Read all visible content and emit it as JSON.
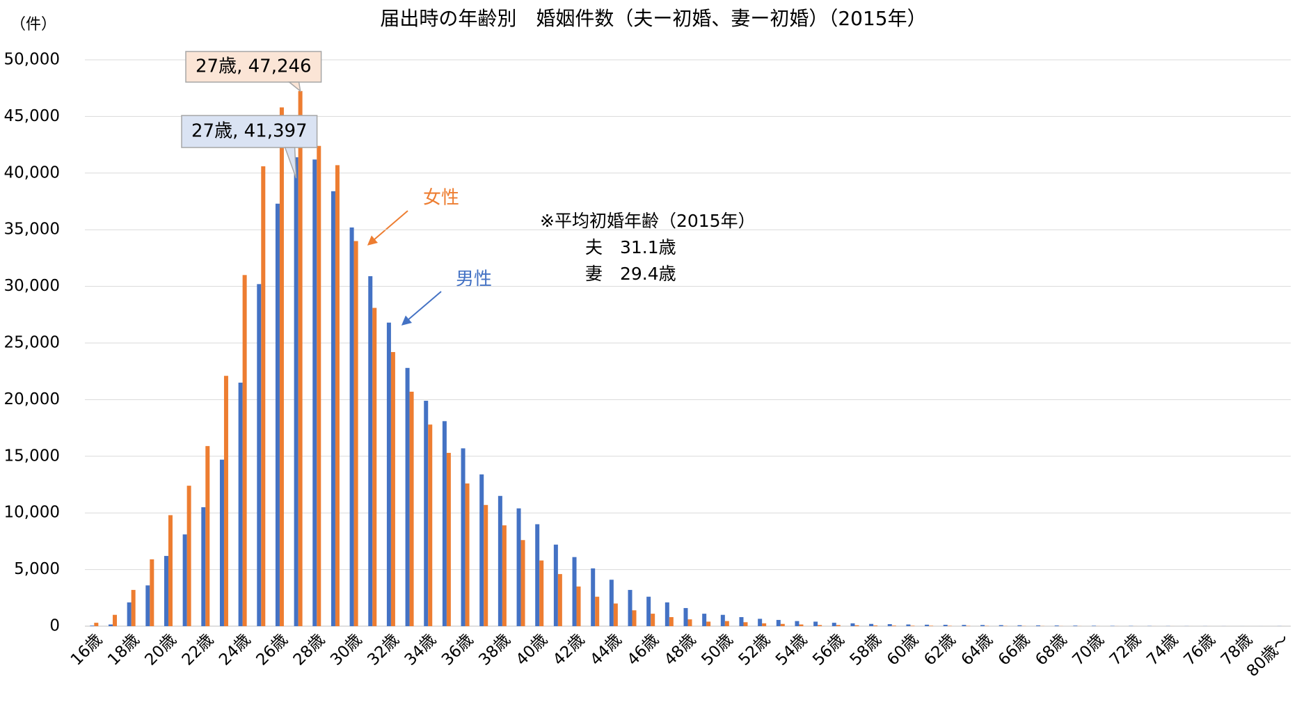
{
  "chart_data": {
    "type": "bar",
    "title": "届出時の年齢別　婚姻件数（夫ー初婚、妻ー初婚）（2015年）",
    "y_unit": "（件）",
    "categories": [
      "16歳",
      null,
      "18歳",
      null,
      "20歳",
      null,
      "22歳",
      null,
      "24歳",
      null,
      "26歳",
      null,
      "28歳",
      null,
      "30歳",
      null,
      "32歳",
      null,
      "34歳",
      null,
      "36歳",
      null,
      "38歳",
      null,
      "40歳",
      null,
      "42歳",
      null,
      "44歳",
      null,
      "46歳",
      null,
      "48歳",
      null,
      "50歳",
      null,
      "52歳",
      null,
      "54歳",
      null,
      "56歳",
      null,
      "58歳",
      null,
      "60歳",
      null,
      "62歳",
      null,
      "64歳",
      null,
      "66歳",
      null,
      "68歳",
      null,
      "70歳",
      null,
      "72歳",
      null,
      "74歳",
      null,
      "76歳",
      null,
      "78歳",
      null,
      "80歳～"
    ],
    "series": [
      {
        "name": "男性",
        "color": "#4472c4",
        "values": [
          50,
          150,
          2100,
          3600,
          6200,
          8100,
          10500,
          14700,
          21500,
          30200,
          37300,
          41397,
          41200,
          38400,
          35200,
          30900,
          26800,
          22800,
          19900,
          18100,
          15700,
          13400,
          11500,
          10400,
          9000,
          7200,
          6100,
          5100,
          4100,
          3200,
          2600,
          2100,
          1600,
          1100,
          1000,
          800,
          650,
          550,
          450,
          400,
          300,
          250,
          200,
          180,
          150,
          130,
          120,
          110,
          100,
          90,
          80,
          70,
          60,
          50,
          40,
          30,
          25,
          20,
          15,
          10,
          8,
          5,
          3,
          2,
          10
        ],
        "value_labels": [
          null,
          null,
          null,
          null,
          null,
          null,
          null,
          null,
          null,
          null,
          null,
          "27歳, 41,397",
          null,
          null,
          null,
          null,
          null,
          null,
          null,
          null,
          null,
          null,
          null,
          null,
          null,
          null,
          null,
          null,
          null,
          null,
          null,
          null,
          null,
          null,
          null,
          null,
          null,
          null,
          null,
          null,
          null,
          null,
          null,
          null,
          null,
          null,
          null,
          null,
          null,
          null,
          null,
          null,
          null,
          null,
          null,
          null,
          null,
          null,
          null,
          null,
          null,
          null,
          null,
          null,
          null
        ]
      },
      {
        "name": "女性",
        "color": "#ed7d31",
        "values": [
          300,
          1000,
          3200,
          5900,
          9800,
          12400,
          15900,
          22100,
          31000,
          40600,
          45800,
          47246,
          42400,
          40700,
          34000,
          28100,
          24200,
          20700,
          17800,
          15300,
          12600,
          10700,
          8900,
          7600,
          5800,
          4600,
          3500,
          2600,
          2000,
          1400,
          1100,
          800,
          600,
          400,
          450,
          350,
          250,
          200,
          150,
          100,
          100,
          80,
          60,
          50,
          40,
          40,
          35,
          30,
          25,
          20,
          18,
          15,
          12,
          10,
          8,
          6,
          5,
          4,
          3,
          2,
          2,
          1,
          1,
          1,
          2
        ],
        "value_labels": [
          null,
          null,
          null,
          null,
          null,
          null,
          null,
          null,
          null,
          null,
          null,
          "27歳, 47,246",
          null,
          null,
          null,
          null,
          null,
          null,
          null,
          null,
          null,
          null,
          null,
          null,
          null,
          null,
          null,
          null,
          null,
          null,
          null,
          null,
          null,
          null,
          null,
          null,
          null,
          null,
          null,
          null,
          null,
          null,
          null,
          null,
          null,
          null,
          null,
          null,
          null,
          null,
          null,
          null,
          null,
          null,
          null,
          null,
          null,
          null,
          null,
          null,
          null,
          null,
          null,
          null,
          null
        ]
      }
    ],
    "ylim": [
      0,
      50000
    ],
    "yticks": [
      0,
      {
        "value": 5000,
        "label": "5,000"
      },
      {
        "value": 10000,
        "label": "10,000"
      },
      {
        "value": 15000,
        "label": "15,000"
      },
      {
        "value": 20000,
        "label": "20,000"
      },
      {
        "value": 25000,
        "label": "25,000"
      },
      {
        "value": 30000,
        "label": "30,000"
      },
      {
        "value": 35000,
        "label": "35,000"
      },
      {
        "value": 40000,
        "label": "40,000"
      },
      {
        "value": 45000,
        "label": "45,000"
      },
      {
        "value": 50000,
        "label": "50,000"
      }
    ],
    "grid": true,
    "note": [
      "※平均初婚年齢（2015年）",
      "夫　31.1歳",
      "妻　29.4歳"
    ]
  }
}
